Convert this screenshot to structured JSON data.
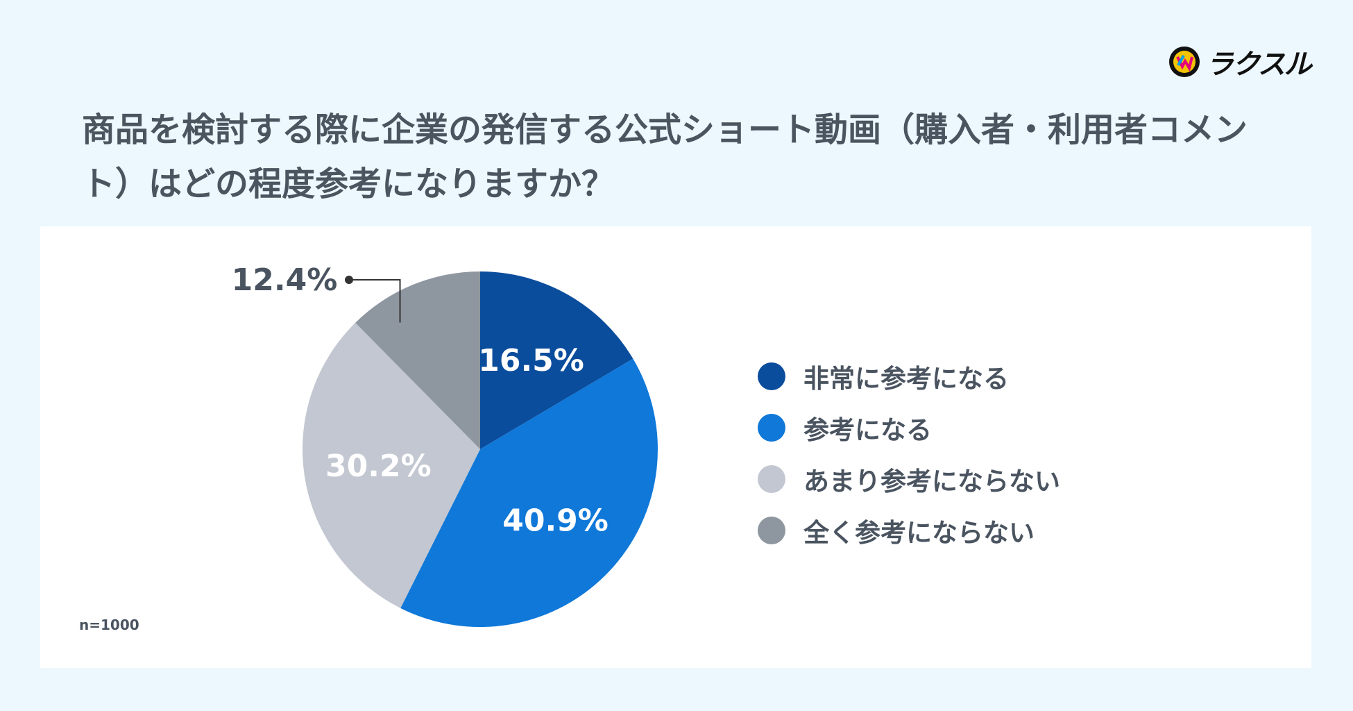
{
  "logo": {
    "text": "ラクスル",
    "icon": "raksul-logo-icon"
  },
  "title": "商品を検討する際に企業の発信する公式ショート動画（購入者・利用者コメント）はどの程度参考になりますか？",
  "n_label": "n=1000",
  "colors": {
    "background": "#ecf8fd",
    "card": "#ffffff",
    "text": "#4a5460"
  },
  "chart_data": {
    "type": "pie",
    "title": "商品を検討する際に企業の発信する公式ショート動画（購入者・利用者コメント）はどの程度参考になりますか？",
    "categories": [
      "非常に参考になる",
      "参考になる",
      "あまり参考にならない",
      "全く参考にならない"
    ],
    "values": [
      16.5,
      40.9,
      30.2,
      12.4
    ],
    "labels": [
      "16.5%",
      "40.9%",
      "30.2%",
      "12.4%"
    ],
    "colors": [
      "#0a4d9c",
      "#0f78d9",
      "#c2c7d1",
      "#8e979f"
    ],
    "label_colors": [
      "#ffffff",
      "#ffffff",
      "#ffffff",
      "#4a5460"
    ],
    "start_angle_deg": 0,
    "direction": "clockwise",
    "legend_position": "right",
    "sample_size": "n=1000"
  }
}
